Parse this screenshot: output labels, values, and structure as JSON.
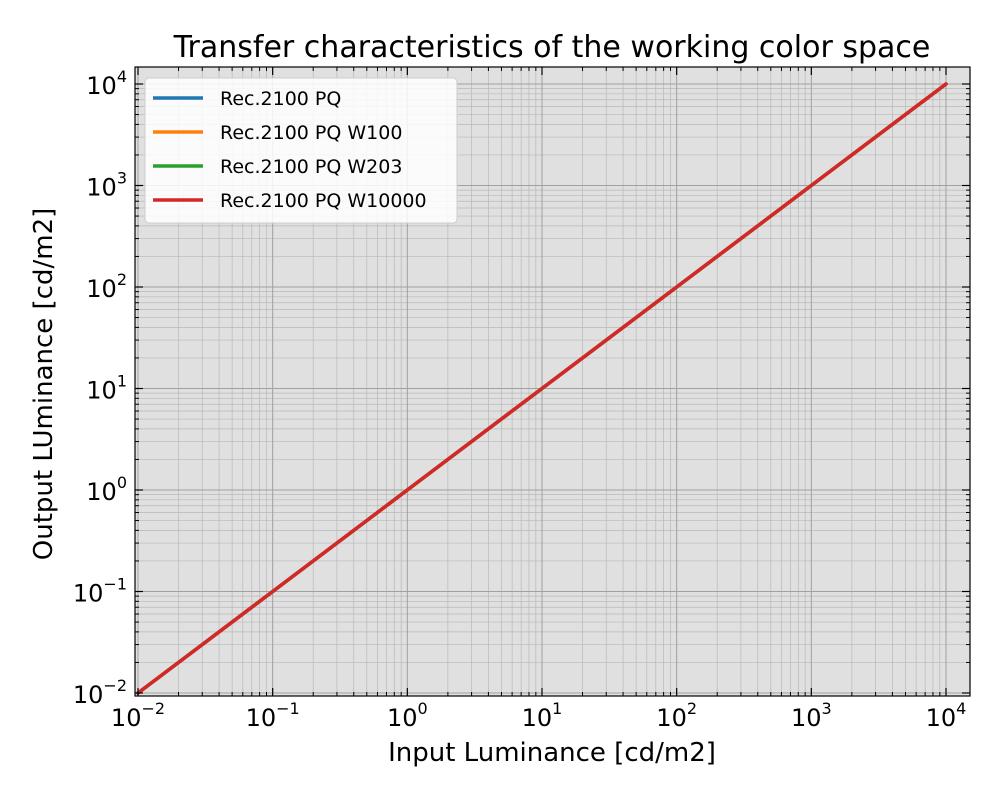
{
  "chart_data": {
    "type": "line",
    "title": "Transfer characteristics of the working color space",
    "xlabel": "Input Luminance [cd/m2]",
    "ylabel": "Output LUminance [cd/m2]",
    "xscale": "log",
    "yscale": "log",
    "xlim": [
      0.01,
      10000
    ],
    "ylim": [
      0.01,
      10000
    ],
    "x_ticks": [
      {
        "value": 0.01,
        "base": "10",
        "exp": "−2"
      },
      {
        "value": 0.1,
        "base": "10",
        "exp": "−1"
      },
      {
        "value": 1,
        "base": "10",
        "exp": "0"
      },
      {
        "value": 10,
        "base": "10",
        "exp": "1"
      },
      {
        "value": 100,
        "base": "10",
        "exp": "2"
      },
      {
        "value": 1000,
        "base": "10",
        "exp": "3"
      },
      {
        "value": 10000,
        "base": "10",
        "exp": "4"
      }
    ],
    "y_ticks": [
      {
        "value": 0.01,
        "base": "10",
        "exp": "−2"
      },
      {
        "value": 0.1,
        "base": "10",
        "exp": "−1"
      },
      {
        "value": 1,
        "base": "10",
        "exp": "0"
      },
      {
        "value": 10,
        "base": "10",
        "exp": "1"
      },
      {
        "value": 100,
        "base": "10",
        "exp": "2"
      },
      {
        "value": 1000,
        "base": "10",
        "exp": "3"
      },
      {
        "value": 10000,
        "base": "10",
        "exp": "4"
      }
    ],
    "grid": true,
    "legend_position": "top-left",
    "plot_background": "#e0e0e0",
    "series": [
      {
        "name": "Rec.2100 PQ",
        "color": "#1f77b4",
        "x": [
          0.01,
          0.1,
          1,
          10,
          100,
          1000,
          10000
        ],
        "y": [
          0.01,
          0.1,
          1,
          10,
          100,
          1000,
          10000
        ]
      },
      {
        "name": "Rec.2100 PQ W100",
        "color": "#ff7f0e",
        "x": [
          0.01,
          0.1,
          1,
          10,
          100,
          1000,
          10000
        ],
        "y": [
          0.01,
          0.1,
          1,
          10,
          100,
          1000,
          10000
        ]
      },
      {
        "name": "Rec.2100 PQ W203",
        "color": "#2ca02c",
        "x": [
          0.01,
          0.1,
          1,
          10,
          100,
          1000,
          10000
        ],
        "y": [
          0.01,
          0.1,
          1,
          10,
          100,
          1000,
          10000
        ]
      },
      {
        "name": "Rec.2100 PQ W10000",
        "color": "#d62728",
        "x": [
          0.01,
          0.1,
          1,
          10,
          100,
          1000,
          10000
        ],
        "y": [
          0.01,
          0.1,
          1,
          10,
          100,
          1000,
          10000
        ]
      }
    ]
  }
}
